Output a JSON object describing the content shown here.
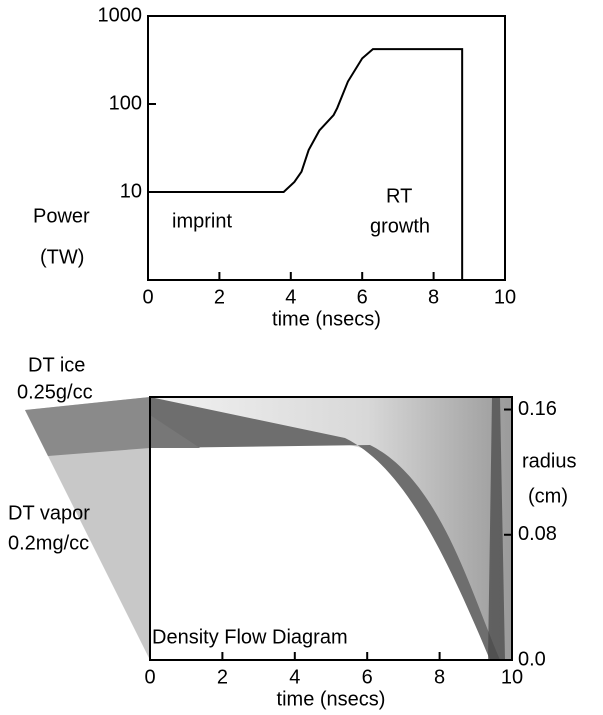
{
  "chart_data": [
    {
      "type": "line",
      "log_y": true,
      "color": "#000000",
      "x": [
        0,
        3.8,
        4.1,
        4.3,
        4.5,
        4.8,
        5.2,
        5.3,
        5.6,
        6.0,
        6.3,
        8.8,
        8.8
      ],
      "values": [
        10,
        10,
        13,
        17,
        30,
        50,
        75,
        90,
        180,
        330,
        420,
        420,
        1
      ],
      "xlim": [
        0,
        10
      ],
      "xticks": [
        0,
        2,
        4,
        6,
        8,
        10
      ],
      "ylim": [
        1,
        1000
      ],
      "yticks": [
        10,
        100,
        1000
      ],
      "xlabel": "time (nsecs)",
      "ylabel": [
        "Power",
        "(TW)"
      ],
      "annotations": [
        "imprint",
        "RT",
        "growth"
      ]
    },
    {
      "type": "density",
      "title": "Density Flow Diagram",
      "xlim": [
        0,
        10
      ],
      "xticks": [
        0,
        2,
        4,
        6,
        8,
        10
      ],
      "ylim": [
        0,
        0.168
      ],
      "yticks": [
        {
          "value": 0,
          "label": "0.0"
        },
        0.08,
        0.16
      ],
      "xlabel": "time (nsecs)",
      "ylabel": [
        "radius",
        "(cm)"
      ],
      "annotations": [
        "DT  ice",
        "0.25g/cc",
        "DT vapor",
        "0.2mg/cc"
      ]
    }
  ]
}
